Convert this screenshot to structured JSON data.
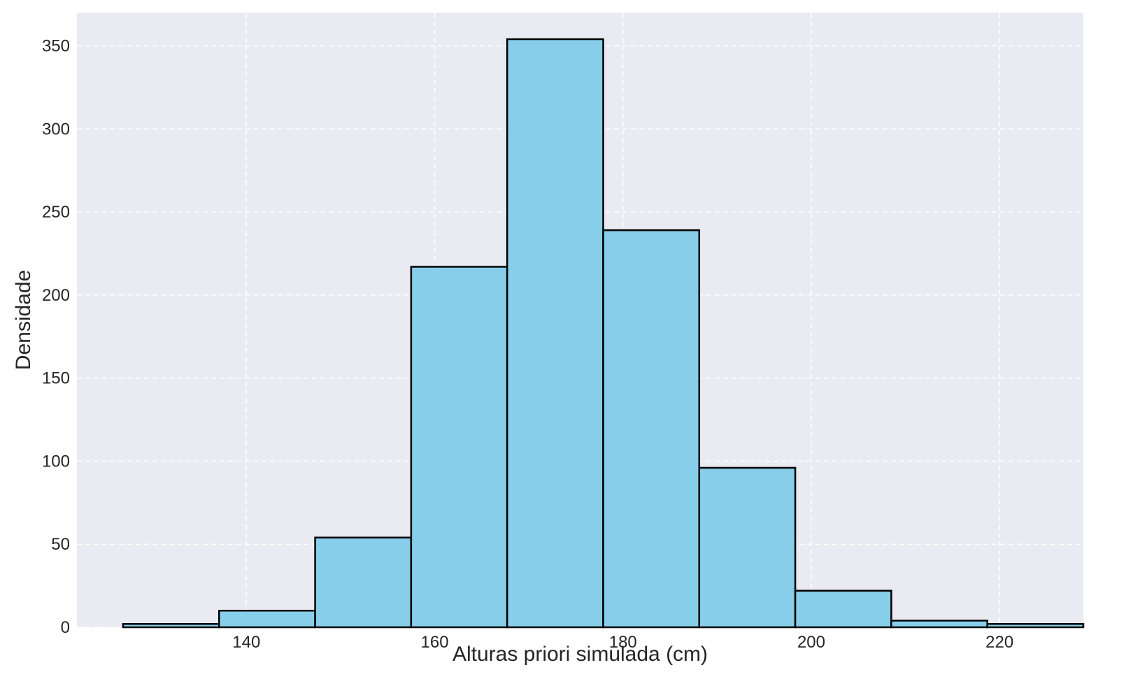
{
  "chart_data": {
    "type": "bar",
    "title": "",
    "xlabel": "Alturas priori simulada (cm)",
    "ylabel": "Densidade",
    "bin_edges": [
      126.9,
      137.1,
      147.3,
      157.5,
      167.7,
      177.9,
      188.1,
      198.3,
      208.5,
      218.7,
      228.9
    ],
    "values": [
      2,
      10,
      54,
      217,
      354,
      239,
      96,
      22,
      4,
      2
    ],
    "xlim": [
      122,
      228.9
    ],
    "ylim": [
      0,
      370
    ],
    "xticks": [
      140,
      160,
      180,
      200,
      220
    ],
    "yticks": [
      0,
      50,
      100,
      150,
      200,
      250,
      300,
      350
    ],
    "grid": true,
    "colors": {
      "bar_fill": "#87ceeb",
      "bar_edge": "#000000",
      "plot_background": "#eaeaf2",
      "grid": "#ffffff"
    }
  }
}
